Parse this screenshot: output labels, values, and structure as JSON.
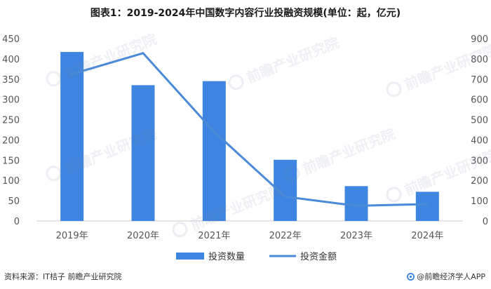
{
  "source_note": "资料来源：IT桔子 前瞻产业研究院",
  "brand_note": "@前瞻经济学人APP",
  "watermark_text": "前瞻产业研究院",
  "icons": {
    "brand_logo": "brand-logo-icon"
  },
  "colors": {
    "bar": "#3d85e0",
    "line": "#4a8ad8",
    "axis_text": "#555555",
    "axis_line": "#cccccc"
  },
  "chart_data": {
    "type": "bar",
    "title": "图表1：2019-2024年中国数字内容行业投融资规模(单位：起，亿元)",
    "categories": [
      "2019年",
      "2020年",
      "2021年",
      "2022年",
      "2023年",
      "2024年"
    ],
    "series": [
      {
        "name": "投资数量",
        "type": "bar",
        "axis": "left",
        "values": [
          417,
          335,
          345,
          151,
          86,
          72
        ]
      },
      {
        "name": "投资金额",
        "type": "line",
        "axis": "right",
        "values": [
          725,
          828,
          440,
          120,
          75,
          83
        ]
      }
    ],
    "y_left": {
      "ylim": [
        0,
        450
      ],
      "ticks": [
        0,
        50,
        100,
        150,
        200,
        250,
        300,
        350,
        400,
        450
      ]
    },
    "y_right": {
      "ylim": [
        0,
        900
      ],
      "ticks": [
        0,
        100,
        200,
        300,
        400,
        500,
        600,
        700,
        800,
        900
      ]
    },
    "grid": false,
    "legend_position": "bottom-center"
  }
}
